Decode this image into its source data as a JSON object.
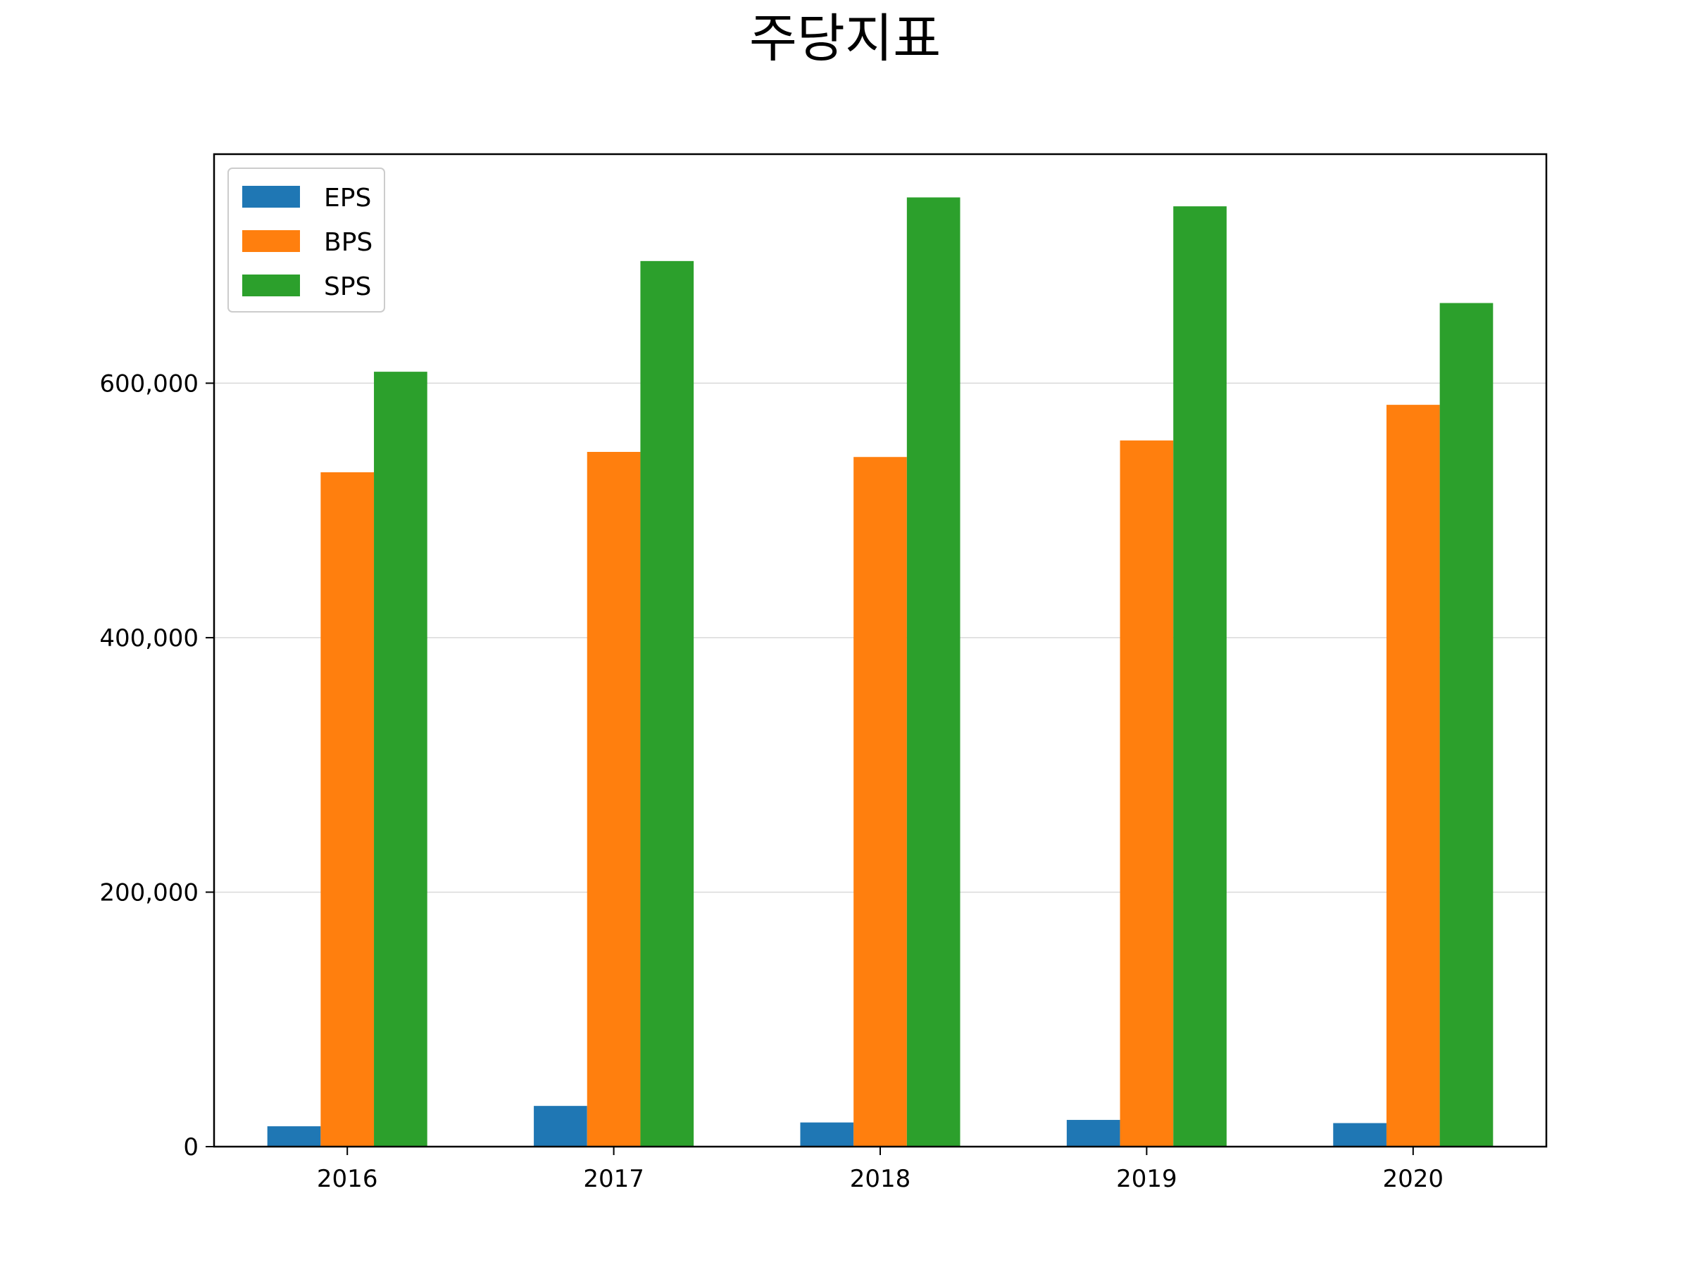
{
  "chart_data": {
    "type": "bar",
    "title": "주당지표",
    "xlabel": "",
    "ylabel": "",
    "categories": [
      "2016",
      "2017",
      "2018",
      "2019",
      "2020"
    ],
    "series": [
      {
        "name": "EPS",
        "color": "#1f77b4",
        "values": [
          16000,
          32000,
          19000,
          21000,
          18500
        ]
      },
      {
        "name": "BPS",
        "color": "#ff7f0e",
        "values": [
          530000,
          546000,
          542000,
          555000,
          583000
        ]
      },
      {
        "name": "SPS",
        "color": "#2ca02c",
        "values": [
          609000,
          696000,
          746000,
          739000,
          663000
        ]
      }
    ],
    "ylim": [
      0,
      780000
    ],
    "yticks": [
      0,
      200000,
      400000,
      600000
    ],
    "ytick_labels": [
      "0",
      "200,000",
      "400,000",
      "600,000"
    ],
    "grid": "horizontal",
    "legend_position": "top-left"
  }
}
